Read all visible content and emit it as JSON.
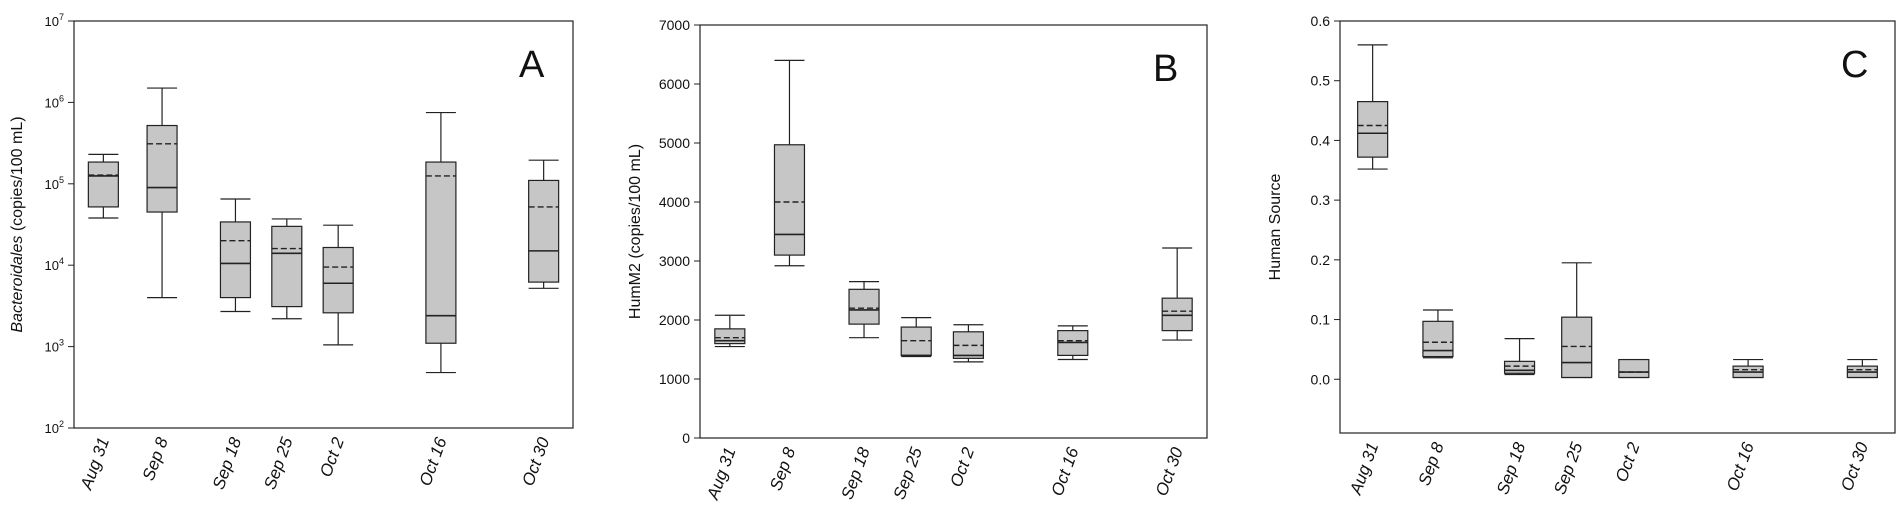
{
  "chart_data": [
    {
      "type": "box",
      "panel_label": "A",
      "ylabel_italic": "Bacteroidales",
      "ylabel_rest": " (copies/100 mL)",
      "yscale": "log",
      "ylim": [
        100,
        10000000
      ],
      "yticks": [
        {
          "value": 100,
          "base": "10",
          "exp": "2"
        },
        {
          "value": 1000,
          "base": "10",
          "exp": "3"
        },
        {
          "value": 10000,
          "base": "10",
          "exp": "4"
        },
        {
          "value": 100000,
          "base": "10",
          "exp": "5"
        },
        {
          "value": 1000000,
          "base": "10",
          "exp": "6"
        },
        {
          "value": 10000000,
          "base": "10",
          "exp": "7"
        }
      ],
      "x_day_range": [
        -4,
        64
      ],
      "categories": [
        "Aug 31",
        "Sep 8",
        "Sep 18",
        "Sep 25",
        "Oct 2",
        "Oct 16",
        "Oct 30"
      ],
      "x_days": [
        0,
        8,
        18,
        25,
        32,
        46,
        60
      ],
      "boxes": [
        {
          "min": 38000,
          "q1": 52000,
          "median": 125000,
          "mean": 128000,
          "q3": 185000,
          "max": 230000
        },
        {
          "min": 4000,
          "q1": 45000,
          "median": 90000,
          "mean": 310000,
          "q3": 520000,
          "max": 1500000
        },
        {
          "min": 2700,
          "q1": 4000,
          "median": 10500,
          "mean": 20000,
          "q3": 34000,
          "max": 65000
        },
        {
          "min": 2200,
          "q1": 3100,
          "median": 14000,
          "mean": 16000,
          "q3": 30000,
          "max": 37000
        },
        {
          "min": 1050,
          "q1": 2600,
          "median": 6000,
          "mean": 9500,
          "q3": 16500,
          "max": 31000
        },
        {
          "min": 480,
          "q1": 1100,
          "median": 2400,
          "mean": 125000,
          "q3": 185000,
          "max": 750000
        },
        {
          "min": 5200,
          "q1": 6200,
          "median": 15000,
          "mean": 52000,
          "q3": 110000,
          "max": 195000
        }
      ]
    },
    {
      "type": "box",
      "panel_label": "B",
      "ylabel": "HumM2 (copies/100 mL)",
      "yscale": "linear",
      "ylim": [
        0,
        7000
      ],
      "yticks": [
        0,
        1000,
        2000,
        3000,
        4000,
        5000,
        6000,
        7000
      ],
      "x_day_range": [
        -4,
        64
      ],
      "categories": [
        "Aug 31",
        "Sep 8",
        "Sep 18",
        "Sep 25",
        "Oct 2",
        "Oct 16",
        "Oct 30"
      ],
      "x_days": [
        0,
        8,
        18,
        25,
        32,
        46,
        60
      ],
      "boxes": [
        {
          "min": 1550,
          "q1": 1600,
          "median": 1650,
          "mean": 1700,
          "q3": 1850,
          "max": 2080
        },
        {
          "min": 2920,
          "q1": 3100,
          "median": 3450,
          "mean": 4000,
          "q3": 4970,
          "max": 6400
        },
        {
          "min": 1700,
          "q1": 1930,
          "median": 2170,
          "mean": 2200,
          "q3": 2520,
          "max": 2650
        },
        {
          "min": 1380,
          "q1": 1400,
          "median": 1400,
          "mean": 1650,
          "q3": 1880,
          "max": 2040
        },
        {
          "min": 1290,
          "q1": 1350,
          "median": 1400,
          "mean": 1570,
          "q3": 1800,
          "max": 1920
        },
        {
          "min": 1330,
          "q1": 1400,
          "median": 1620,
          "mean": 1650,
          "q3": 1820,
          "max": 1900
        },
        {
          "min": 1660,
          "q1": 1820,
          "median": 2080,
          "mean": 2150,
          "q3": 2370,
          "max": 3220
        }
      ]
    },
    {
      "type": "box",
      "panel_label": "C",
      "ylabel": "Human Source",
      "yscale": "linear",
      "ylim": [
        -0.09,
        0.6
      ],
      "yticks": [
        0.0,
        0.1,
        0.2,
        0.3,
        0.4,
        0.5,
        0.6
      ],
      "ytick_labels": [
        "0.0",
        "0.1",
        "0.2",
        "0.3",
        "0.4",
        "0.5",
        "0.6"
      ],
      "x_day_range": [
        -4,
        64
      ],
      "categories": [
        "Aug 31",
        "Sep 8",
        "Sep 18",
        "Sep 25",
        "Oct 2",
        "Oct 16",
        "Oct 30"
      ],
      "x_days": [
        0,
        8,
        18,
        25,
        32,
        46,
        60
      ],
      "boxes": [
        {
          "min": 0.352,
          "q1": 0.372,
          "median": 0.412,
          "mean": 0.425,
          "q3": 0.465,
          "max": 0.56
        },
        {
          "min": 0.036,
          "q1": 0.038,
          "median": 0.048,
          "mean": 0.062,
          "q3": 0.097,
          "max": 0.116
        },
        {
          "min": 0.008,
          "q1": 0.01,
          "median": 0.015,
          "mean": 0.022,
          "q3": 0.03,
          "max": 0.068
        },
        {
          "min": 0.003,
          "q1": 0.003,
          "median": 0.028,
          "mean": 0.055,
          "q3": 0.104,
          "max": 0.195
        },
        {
          "min": 0.003,
          "q1": 0.003,
          "median": 0.012,
          "mean": 0.012,
          "q3": 0.033,
          "max": 0.033
        },
        {
          "min": 0.003,
          "q1": 0.003,
          "median": 0.012,
          "mean": 0.016,
          "q3": 0.022,
          "max": 0.033
        },
        {
          "min": 0.003,
          "q1": 0.003,
          "median": 0.012,
          "mean": 0.016,
          "q3": 0.022,
          "max": 0.033
        }
      ]
    }
  ],
  "style": {
    "box_fill": "#c6c6c6",
    "line_color": "#222222",
    "median_style": "solid",
    "mean_style": "dashed"
  }
}
